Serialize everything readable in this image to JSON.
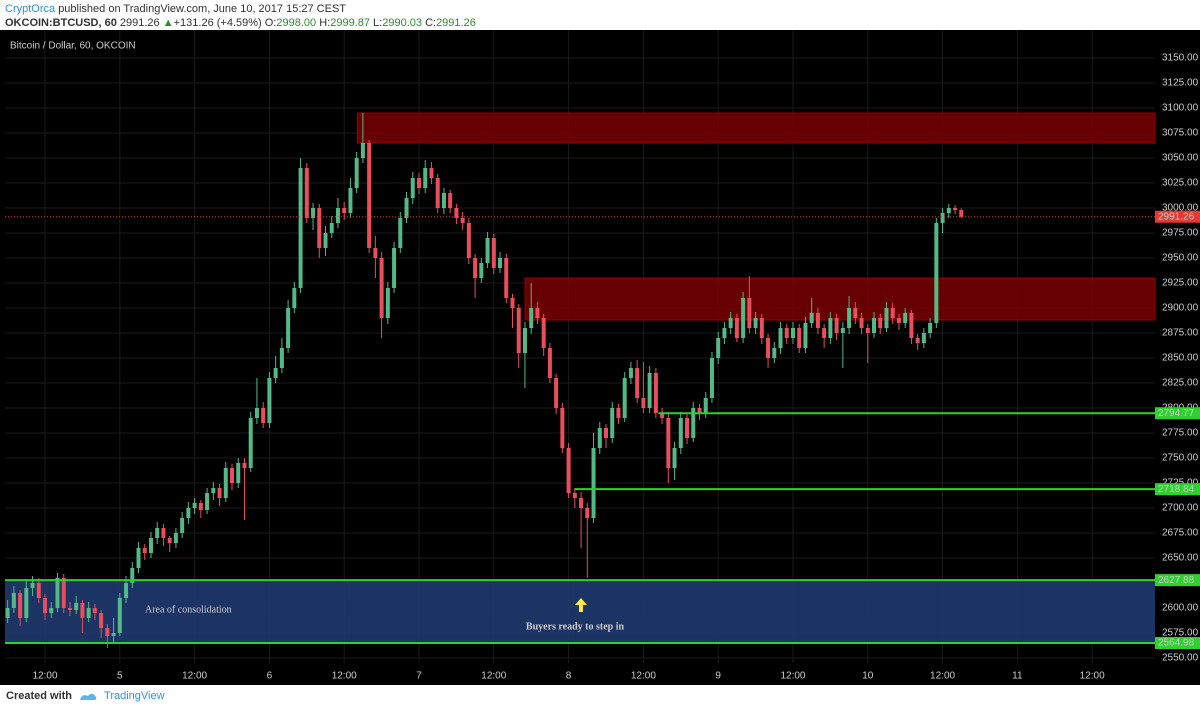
{
  "header": {
    "author": "CryptOrca",
    "published": "published on TradingView.com, June 10, 2017 15:27 CEST",
    "symbol": "OKCOIN:BTCUSD, 60",
    "last": "2991.26",
    "change": "+131.26 (+4.59%)",
    "o_label": "O:",
    "open": "2998.00",
    "h_label": "H:",
    "high": "2999.87",
    "l_label": "L:",
    "low": "2990.03",
    "c_label": "C:",
    "close": "2991.26"
  },
  "footer": {
    "created": "Created with",
    "brand": "TradingView"
  },
  "chart_data": {
    "type": "candlestick",
    "title": "Bitcoin / Dollar, 60, OKCOIN",
    "up_color": "#53b987",
    "down_color": "#eb4d5c",
    "grid": true,
    "xlim": [
      5.58,
      190.08
    ],
    "ylim": [
      2545,
      3178
    ],
    "xticks": [
      {
        "value": 12,
        "label": "12:00"
      },
      {
        "value": 24,
        "label": "5"
      },
      {
        "value": 36,
        "label": "12:00"
      },
      {
        "value": 48,
        "label": "6"
      },
      {
        "value": 60,
        "label": "12:00"
      },
      {
        "value": 72,
        "label": "7"
      },
      {
        "value": 84,
        "label": "12:00"
      },
      {
        "value": 96,
        "label": "8"
      },
      {
        "value": 108,
        "label": "12:00"
      },
      {
        "value": 120,
        "label": "9"
      },
      {
        "value": 132,
        "label": "12:00"
      },
      {
        "value": 144,
        "label": "10"
      },
      {
        "value": 156,
        "label": "12:00"
      },
      {
        "value": 168,
        "label": "11"
      },
      {
        "value": 180,
        "label": "12:00"
      }
    ],
    "yticks": [
      {
        "value": 2550,
        "label": "2550.00"
      },
      {
        "value": 2575,
        "label": "2575.00"
      },
      {
        "value": 2600,
        "label": "2600.00"
      },
      {
        "value": 2625,
        "label": "2625.00"
      },
      {
        "value": 2650,
        "label": "2650.00"
      },
      {
        "value": 2675,
        "label": "2675.00"
      },
      {
        "value": 2700,
        "label": "2700.00"
      },
      {
        "value": 2725,
        "label": "2725.00"
      },
      {
        "value": 2750,
        "label": "2750.00"
      },
      {
        "value": 2775,
        "label": "2775.00"
      },
      {
        "value": 2800,
        "label": "2800.00"
      },
      {
        "value": 2825,
        "label": "2825.00"
      },
      {
        "value": 2850,
        "label": "2850.00"
      },
      {
        "value": 2875,
        "label": "2875.00"
      },
      {
        "value": 2900,
        "label": "2900.00"
      },
      {
        "value": 2925,
        "label": "2925.00"
      },
      {
        "value": 2950,
        "label": "2950.00"
      },
      {
        "value": 2975,
        "label": "2975.00"
      },
      {
        "value": 3000,
        "label": "3000.00"
      },
      {
        "value": 3025,
        "label": "3025.00"
      },
      {
        "value": 3050,
        "label": "3050.00"
      },
      {
        "value": 3075,
        "label": "3075.00"
      },
      {
        "value": 3100,
        "label": "3100.00"
      },
      {
        "value": 3125,
        "label": "3125.00"
      },
      {
        "value": 3150,
        "label": "3150.00"
      }
    ],
    "last_price": 2991.26,
    "last_color": "#e53935",
    "level_color": "#2ed12e",
    "zone_color": "#1f3a6f",
    "zones": [
      {
        "from": 3065,
        "to": 3095,
        "start": 62.1,
        "color": "#7a0000"
      },
      {
        "from": 2888,
        "to": 2930,
        "start": 89,
        "color": "#7a0000"
      }
    ],
    "levels": [
      {
        "value": 2794.77,
        "start": 110.4
      },
      {
        "value": 2718.84,
        "start": 97
      },
      {
        "value": 2627.88,
        "start": 5.58
      },
      {
        "value": 2564.98,
        "start": 5.58
      }
    ],
    "annotations": [
      "Area of consolidation",
      "Buyers ready to step in"
    ],
    "x": [
      6,
      7,
      8,
      9,
      10,
      11,
      12,
      13,
      14,
      15,
      16,
      17,
      18,
      19,
      20,
      21,
      22,
      23,
      24,
      25,
      26,
      27,
      28,
      29,
      30,
      31,
      32,
      33,
      34,
      35,
      36,
      37,
      38,
      39,
      40,
      41,
      42,
      43,
      44,
      45,
      46,
      47,
      48,
      49,
      50,
      51,
      52,
      53,
      54,
      55,
      56,
      57,
      58,
      59,
      60,
      61,
      62,
      63,
      64,
      65,
      66,
      67,
      68,
      69,
      70,
      71,
      72,
      73,
      74,
      75,
      76,
      77,
      78,
      79,
      80,
      81,
      82,
      83,
      84,
      85,
      86,
      87,
      88,
      89,
      90,
      91,
      92,
      93,
      94,
      95,
      96,
      97,
      98,
      99,
      100,
      101,
      102,
      103,
      104,
      105,
      106,
      107,
      108,
      109,
      110,
      111,
      112,
      113,
      114,
      115,
      116,
      117,
      118,
      119,
      120,
      121,
      122,
      123,
      124,
      125,
      126,
      127,
      128,
      129,
      130,
      131,
      132,
      133,
      134,
      135,
      136,
      137,
      138,
      139,
      140,
      141,
      142,
      143,
      144,
      145,
      146,
      147,
      148,
      149,
      150,
      151,
      152,
      153,
      154,
      155,
      156,
      157,
      158,
      159
    ],
    "ohlc": [
      [
        2590,
        2608,
        2585,
        2600
      ],
      [
        2600,
        2622,
        2595,
        2615
      ],
      [
        2615,
        2618,
        2582,
        2590
      ],
      [
        2590,
        2628,
        2586,
        2620
      ],
      [
        2620,
        2632,
        2612,
        2625
      ],
      [
        2625,
        2630,
        2605,
        2610
      ],
      [
        2610,
        2614,
        2588,
        2595
      ],
      [
        2595,
        2606,
        2590,
        2600
      ],
      [
        2600,
        2635,
        2596,
        2630
      ],
      [
        2630,
        2634,
        2595,
        2600
      ],
      [
        2600,
        2606,
        2592,
        2598
      ],
      [
        2598,
        2612,
        2594,
        2605
      ],
      [
        2605,
        2608,
        2575,
        2590
      ],
      [
        2590,
        2606,
        2586,
        2600
      ],
      [
        2600,
        2604,
        2588,
        2595
      ],
      [
        2595,
        2598,
        2570,
        2580
      ],
      [
        2580,
        2584,
        2560,
        2572
      ],
      [
        2572,
        2590,
        2566,
        2575
      ],
      [
        2575,
        2615,
        2572,
        2610
      ],
      [
        2610,
        2632,
        2605,
        2625
      ],
      [
        2625,
        2646,
        2620,
        2640
      ],
      [
        2640,
        2666,
        2635,
        2660
      ],
      [
        2660,
        2664,
        2648,
        2655
      ],
      [
        2655,
        2676,
        2650,
        2670
      ],
      [
        2670,
        2686,
        2664,
        2680
      ],
      [
        2680,
        2684,
        2662,
        2670
      ],
      [
        2670,
        2672,
        2656,
        2665
      ],
      [
        2665,
        2680,
        2660,
        2675
      ],
      [
        2675,
        2696,
        2670,
        2690
      ],
      [
        2690,
        2706,
        2684,
        2700
      ],
      [
        2700,
        2710,
        2694,
        2705
      ],
      [
        2705,
        2708,
        2690,
        2698
      ],
      [
        2698,
        2720,
        2694,
        2715
      ],
      [
        2715,
        2726,
        2708,
        2720
      ],
      [
        2720,
        2724,
        2702,
        2710
      ],
      [
        2710,
        2746,
        2706,
        2740
      ],
      [
        2740,
        2744,
        2718,
        2725
      ],
      [
        2725,
        2750,
        2720,
        2745
      ],
      [
        2745,
        2750,
        2688,
        2740
      ],
      [
        2740,
        2796,
        2736,
        2790
      ],
      [
        2790,
        2830,
        2784,
        2800
      ],
      [
        2800,
        2806,
        2780,
        2785
      ],
      [
        2785,
        2836,
        2780,
        2830
      ],
      [
        2830,
        2852,
        2825,
        2840
      ],
      [
        2840,
        2870,
        2835,
        2860
      ],
      [
        2860,
        2908,
        2855,
        2900
      ],
      [
        2900,
        2926,
        2895,
        2920
      ],
      [
        2920,
        3050,
        2915,
        3040
      ],
      [
        3040,
        3045,
        2985,
        2990
      ],
      [
        2990,
        3005,
        2978,
        3000
      ],
      [
        3000,
        3004,
        2950,
        2960
      ],
      [
        2960,
        2982,
        2952,
        2975
      ],
      [
        2975,
        2992,
        2970,
        2985
      ],
      [
        2985,
        3010,
        2980,
        3000
      ],
      [
        3000,
        3006,
        2988,
        2995
      ],
      [
        2995,
        3030,
        2990,
        3020
      ],
      [
        3020,
        3056,
        3015,
        3050
      ],
      [
        3050,
        3095,
        3045,
        3065
      ],
      [
        3065,
        3068,
        2955,
        2960
      ],
      [
        2960,
        2972,
        2930,
        2950
      ],
      [
        2950,
        2956,
        2870,
        2890
      ],
      [
        2890,
        2926,
        2884,
        2920
      ],
      [
        2920,
        2966,
        2915,
        2960
      ],
      [
        2960,
        2996,
        2955,
        2990
      ],
      [
        2990,
        3016,
        2985,
        3010
      ],
      [
        3010,
        3036,
        3004,
        3030
      ],
      [
        3030,
        3035,
        3014,
        3020
      ],
      [
        3020,
        3048,
        3015,
        3040
      ],
      [
        3040,
        3046,
        3024,
        3030
      ],
      [
        3030,
        3034,
        2995,
        3000
      ],
      [
        3000,
        3020,
        2994,
        3015
      ],
      [
        3015,
        3018,
        2995,
        3000
      ],
      [
        3000,
        3004,
        2984,
        2990
      ],
      [
        2990,
        2996,
        2978,
        2985
      ],
      [
        2985,
        2990,
        2944,
        2950
      ],
      [
        2950,
        2954,
        2910,
        2930
      ],
      [
        2930,
        2950,
        2925,
        2945
      ],
      [
        2945,
        2976,
        2940,
        2970
      ],
      [
        2970,
        2974,
        2934,
        2940
      ],
      [
        2940,
        2956,
        2935,
        2950
      ],
      [
        2950,
        2954,
        2905,
        2910
      ],
      [
        2910,
        2914,
        2880,
        2900
      ],
      [
        2900,
        2904,
        2840,
        2855
      ],
      [
        2855,
        2886,
        2820,
        2880
      ],
      [
        2880,
        2925,
        2874,
        2900
      ],
      [
        2900,
        2906,
        2884,
        2890
      ],
      [
        2890,
        2894,
        2852,
        2860
      ],
      [
        2860,
        2865,
        2825,
        2830
      ],
      [
        2830,
        2834,
        2794,
        2800
      ],
      [
        2800,
        2805,
        2755,
        2760
      ],
      [
        2760,
        2765,
        2710,
        2715
      ],
      [
        2715,
        2720,
        2700,
        2710
      ],
      [
        2710,
        2716,
        2660,
        2700
      ],
      [
        2700,
        2705,
        2630,
        2690
      ],
      [
        2690,
        2775,
        2685,
        2760
      ],
      [
        2760,
        2786,
        2754,
        2780
      ],
      [
        2780,
        2784,
        2760,
        2770
      ],
      [
        2770,
        2806,
        2765,
        2800
      ],
      [
        2800,
        2804,
        2784,
        2790
      ],
      [
        2790,
        2836,
        2786,
        2830
      ],
      [
        2830,
        2846,
        2824,
        2840
      ],
      [
        2840,
        2848,
        2805,
        2810
      ],
      [
        2810,
        2846,
        2795,
        2800
      ],
      [
        2800,
        2842,
        2795,
        2835
      ],
      [
        2835,
        2840,
        2790,
        2795
      ],
      [
        2795,
        2800,
        2784,
        2790
      ],
      [
        2790,
        2795,
        2725,
        2740
      ],
      [
        2740,
        2766,
        2728,
        2760
      ],
      [
        2760,
        2796,
        2754,
        2790
      ],
      [
        2790,
        2794,
        2764,
        2770
      ],
      [
        2770,
        2806,
        2766,
        2800
      ],
      [
        2800,
        2804,
        2788,
        2795
      ],
      [
        2795,
        2816,
        2790,
        2810
      ],
      [
        2810,
        2856,
        2805,
        2850
      ],
      [
        2850,
        2876,
        2844,
        2870
      ],
      [
        2870,
        2886,
        2864,
        2880
      ],
      [
        2880,
        2896,
        2874,
        2890
      ],
      [
        2890,
        2894,
        2866,
        2870
      ],
      [
        2870,
        2916,
        2865,
        2910
      ],
      [
        2910,
        2932,
        2875,
        2880
      ],
      [
        2880,
        2896,
        2874,
        2890
      ],
      [
        2890,
        2894,
        2864,
        2870
      ],
      [
        2870,
        2874,
        2840,
        2850
      ],
      [
        2850,
        2866,
        2845,
        2860
      ],
      [
        2860,
        2886,
        2854,
        2880
      ],
      [
        2880,
        2884,
        2864,
        2870
      ],
      [
        2870,
        2886,
        2864,
        2880
      ],
      [
        2880,
        2884,
        2855,
        2860
      ],
      [
        2860,
        2891,
        2855,
        2885
      ],
      [
        2885,
        2910,
        2880,
        2895
      ],
      [
        2895,
        2900,
        2874,
        2880
      ],
      [
        2880,
        2884,
        2860,
        2870
      ],
      [
        2870,
        2896,
        2864,
        2890
      ],
      [
        2890,
        2894,
        2868,
        2875
      ],
      [
        2875,
        2886,
        2840,
        2880
      ],
      [
        2880,
        2912,
        2874,
        2900
      ],
      [
        2900,
        2906,
        2884,
        2890
      ],
      [
        2890,
        2895,
        2874,
        2880
      ],
      [
        2880,
        2884,
        2845,
        2875
      ],
      [
        2875,
        2896,
        2870,
        2890
      ],
      [
        2890,
        2894,
        2874,
        2880
      ],
      [
        2880,
        2906,
        2876,
        2900
      ],
      [
        2900,
        2905,
        2884,
        2890
      ],
      [
        2890,
        2894,
        2878,
        2885
      ],
      [
        2885,
        2900,
        2880,
        2895
      ],
      [
        2895,
        2898,
        2864,
        2870
      ],
      [
        2870,
        2874,
        2858,
        2865
      ],
      [
        2865,
        2880,
        2860,
        2875
      ],
      [
        2875,
        2890,
        2870,
        2885
      ],
      [
        2885,
        2990,
        2880,
        2985
      ],
      [
        2985,
        3000,
        2975,
        2995
      ],
      [
        2995,
        3004,
        2990,
        3000
      ],
      [
        3000,
        3003,
        2994,
        2998
      ],
      [
        2998,
        2999.87,
        2990.03,
        2991.26
      ]
    ]
  }
}
